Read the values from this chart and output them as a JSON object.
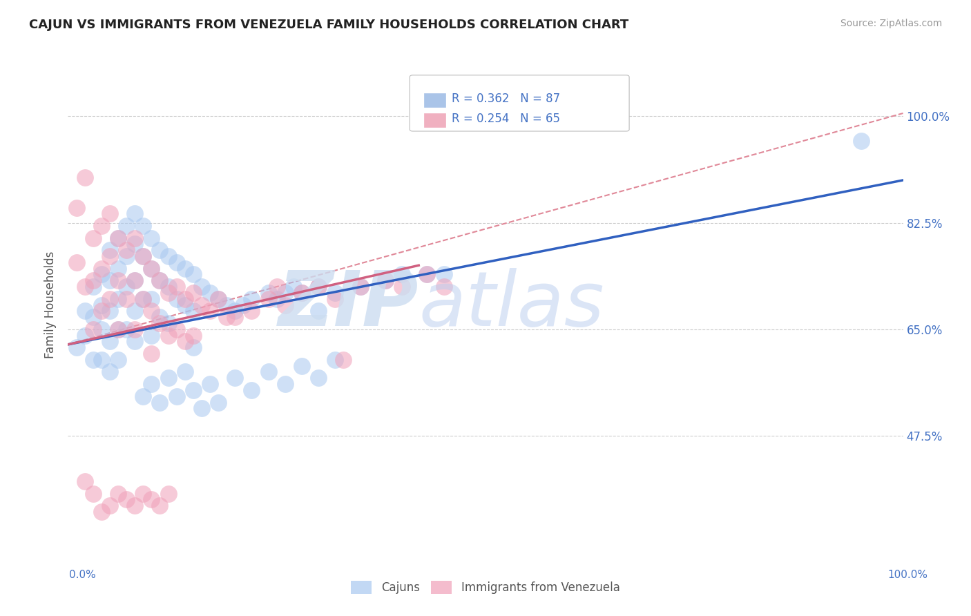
{
  "title": "CAJUN VS IMMIGRANTS FROM VENEZUELA FAMILY HOUSEHOLDS CORRELATION CHART",
  "source": "Source: ZipAtlas.com",
  "ylabel": "Family Households",
  "ytick_labels": [
    "47.5%",
    "65.0%",
    "82.5%",
    "100.0%"
  ],
  "ytick_values": [
    0.475,
    0.65,
    0.825,
    1.0
  ],
  "xrange": [
    0.0,
    1.0
  ],
  "yrange": [
    0.28,
    1.1
  ],
  "cajun_color": "#a8c8f0",
  "venezuela_color": "#f0a0b8",
  "cajun_line_color": "#3060c0",
  "venezuela_line_color": "#d06080",
  "pink_dash_color": "#e08898",
  "background_color": "#ffffff",
  "grid_color": "#cccccc",
  "cajun_line": {
    "x0": 0.0,
    "x1": 1.0,
    "y0": 0.625,
    "y1": 0.895
  },
  "venezuela_line": {
    "x0": 0.0,
    "x1": 0.42,
    "y0": 0.625,
    "y1": 0.755
  },
  "pink_dash_line": {
    "x0": 0.0,
    "x1": 1.0,
    "y0": 0.625,
    "y1": 1.005
  },
  "cajun_scatter_x": [
    0.01,
    0.02,
    0.02,
    0.03,
    0.03,
    0.03,
    0.04,
    0.04,
    0.04,
    0.04,
    0.05,
    0.05,
    0.05,
    0.05,
    0.05,
    0.06,
    0.06,
    0.06,
    0.06,
    0.06,
    0.07,
    0.07,
    0.07,
    0.07,
    0.08,
    0.08,
    0.08,
    0.08,
    0.08,
    0.09,
    0.09,
    0.09,
    0.1,
    0.1,
    0.1,
    0.1,
    0.11,
    0.11,
    0.11,
    0.12,
    0.12,
    0.12,
    0.13,
    0.13,
    0.14,
    0.14,
    0.15,
    0.15,
    0.15,
    0.16,
    0.17,
    0.18,
    0.19,
    0.2,
    0.21,
    0.22,
    0.24,
    0.25,
    0.26,
    0.27,
    0.28,
    0.3,
    0.3,
    0.32,
    0.35,
    0.38,
    0.4,
    0.43,
    0.45,
    0.95,
    0.09,
    0.1,
    0.11,
    0.12,
    0.13,
    0.14,
    0.15,
    0.16,
    0.17,
    0.18,
    0.2,
    0.22,
    0.24,
    0.26,
    0.28,
    0.3,
    0.32
  ],
  "cajun_scatter_y": [
    0.62,
    0.68,
    0.64,
    0.72,
    0.67,
    0.6,
    0.74,
    0.69,
    0.65,
    0.6,
    0.78,
    0.73,
    0.68,
    0.63,
    0.58,
    0.8,
    0.75,
    0.7,
    0.65,
    0.6,
    0.82,
    0.77,
    0.72,
    0.65,
    0.84,
    0.79,
    0.73,
    0.68,
    0.63,
    0.82,
    0.77,
    0.7,
    0.8,
    0.75,
    0.7,
    0.64,
    0.78,
    0.73,
    0.67,
    0.77,
    0.72,
    0.66,
    0.76,
    0.7,
    0.75,
    0.69,
    0.74,
    0.68,
    0.62,
    0.72,
    0.71,
    0.7,
    0.69,
    0.68,
    0.69,
    0.7,
    0.71,
    0.7,
    0.71,
    0.72,
    0.71,
    0.72,
    0.68,
    0.71,
    0.72,
    0.73,
    0.74,
    0.74,
    0.74,
    0.96,
    0.54,
    0.56,
    0.53,
    0.57,
    0.54,
    0.58,
    0.55,
    0.52,
    0.56,
    0.53,
    0.57,
    0.55,
    0.58,
    0.56,
    0.59,
    0.57,
    0.6
  ],
  "venezuela_scatter_x": [
    0.01,
    0.01,
    0.02,
    0.02,
    0.03,
    0.03,
    0.03,
    0.04,
    0.04,
    0.04,
    0.05,
    0.05,
    0.05,
    0.06,
    0.06,
    0.06,
    0.07,
    0.07,
    0.08,
    0.08,
    0.08,
    0.09,
    0.09,
    0.1,
    0.1,
    0.1,
    0.11,
    0.11,
    0.12,
    0.12,
    0.13,
    0.13,
    0.14,
    0.14,
    0.15,
    0.15,
    0.16,
    0.17,
    0.18,
    0.19,
    0.2,
    0.22,
    0.24,
    0.25,
    0.26,
    0.28,
    0.3,
    0.32,
    0.35,
    0.38,
    0.4,
    0.43,
    0.45,
    0.02,
    0.03,
    0.04,
    0.05,
    0.06,
    0.07,
    0.08,
    0.09,
    0.1,
    0.11,
    0.12,
    0.33
  ],
  "venezuela_scatter_y": [
    0.85,
    0.76,
    0.9,
    0.72,
    0.8,
    0.73,
    0.65,
    0.82,
    0.75,
    0.68,
    0.84,
    0.77,
    0.7,
    0.8,
    0.73,
    0.65,
    0.78,
    0.7,
    0.8,
    0.73,
    0.65,
    0.77,
    0.7,
    0.75,
    0.68,
    0.61,
    0.73,
    0.66,
    0.71,
    0.64,
    0.72,
    0.65,
    0.7,
    0.63,
    0.71,
    0.64,
    0.69,
    0.68,
    0.7,
    0.67,
    0.67,
    0.68,
    0.7,
    0.72,
    0.69,
    0.71,
    0.72,
    0.7,
    0.72,
    0.73,
    0.72,
    0.74,
    0.72,
    0.4,
    0.38,
    0.35,
    0.36,
    0.38,
    0.37,
    0.36,
    0.38,
    0.37,
    0.36,
    0.38,
    0.6
  ]
}
